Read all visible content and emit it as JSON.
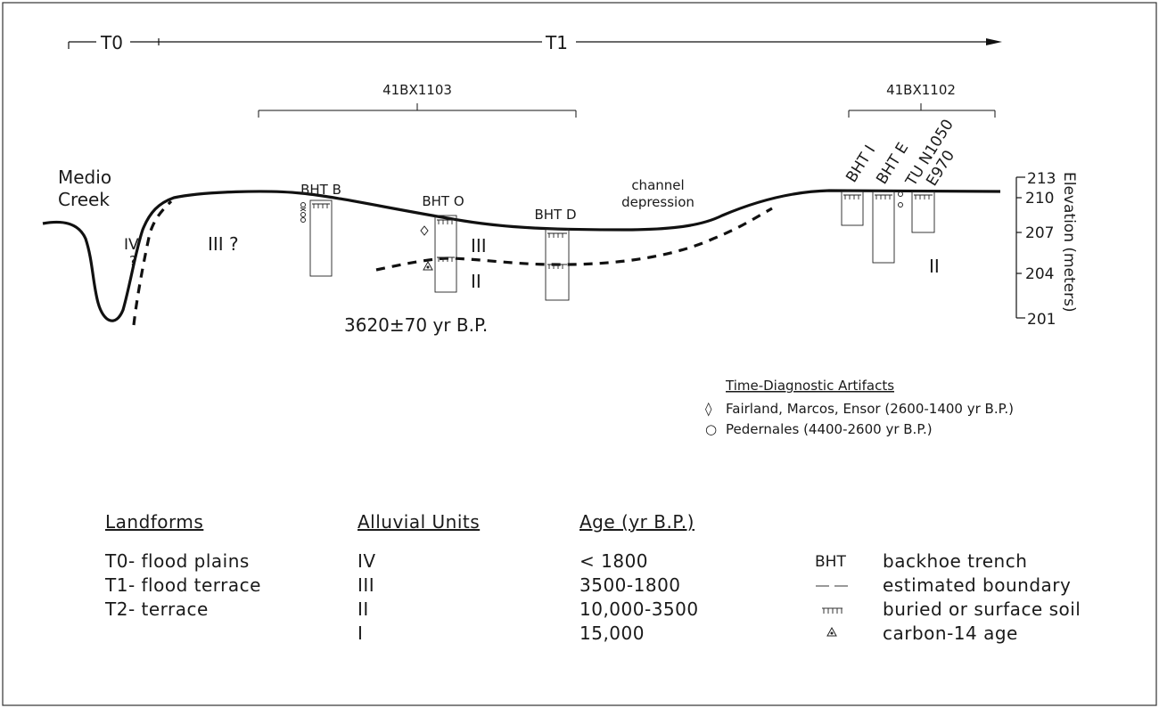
{
  "zones": {
    "t0_label": "T0",
    "t1_label": "T1"
  },
  "sites": {
    "site_1103": "41BX1103",
    "site_1102": "41BX1102"
  },
  "profile": {
    "creek_line1": "Medio",
    "creek_line2": "Creek",
    "channel_line1": "channel",
    "channel_line2": "depression",
    "date_label": "3620±70 yr B.P.",
    "unit_iv": "IV",
    "unit_iv_q": "?",
    "unit_iii_q": "III ?",
    "unit_iii": "III",
    "unit_ii_left": "II",
    "unit_ii_right": "II"
  },
  "trenches": {
    "bht_b": "BHT B",
    "bht_o": "BHT O",
    "bht_d": "BHT D",
    "bht_i": "BHT I",
    "bht_e": "BHT E",
    "tu_line1": "TU N1050",
    "tu_line2": "E970"
  },
  "elevation_axis": {
    "title": "Elevation (meters)",
    "ticks": [
      "213",
      "210",
      "207",
      "204",
      "201"
    ]
  },
  "artifacts": {
    "title": "Time-Diagnostic Artifacts",
    "items": [
      {
        "symbol": "◊",
        "label": "Fairland, Marcos, Ensor (2600-1400 yr B.P.)"
      },
      {
        "symbol": "○",
        "label": "Pedernales (4400-2600 yr B.P.)"
      }
    ]
  },
  "legend": {
    "landforms_header": "Landforms",
    "alluvial_header": "Alluvial Units",
    "age_header": "Age (yr B.P.)",
    "landforms": [
      "T0- flood plains",
      "T1- flood terrace",
      "T2- terrace"
    ],
    "alluvial_units": [
      "IV",
      "III",
      "II",
      "I"
    ],
    "ages": [
      "< 1800",
      "3500-1800",
      "10,000-3500",
      "15,000"
    ],
    "key_bht_symbol": "BHT",
    "key_labels": [
      "backhoe trench",
      "estimated boundary",
      "buried or surface soil",
      "carbon-14 age"
    ]
  }
}
